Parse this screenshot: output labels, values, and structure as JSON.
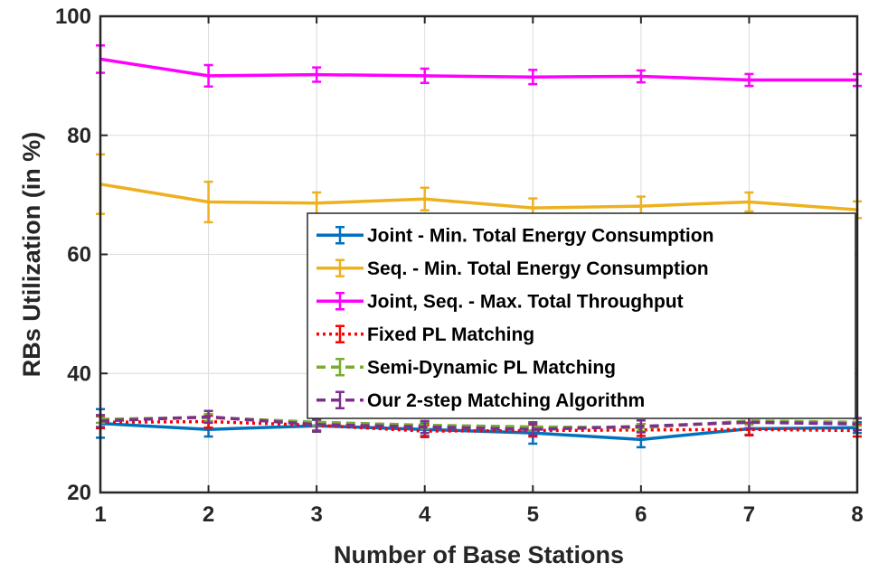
{
  "chart_data": {
    "type": "line",
    "xlabel": "Number of Base Stations",
    "ylabel": "RBs Utilization (in %)",
    "xlim": [
      1,
      8
    ],
    "ylim": [
      20,
      100
    ],
    "xticks": [
      1,
      2,
      3,
      4,
      5,
      6,
      7,
      8
    ],
    "yticks": [
      20,
      40,
      60,
      80,
      100
    ],
    "grid": true,
    "legend_position": "right-center",
    "x": [
      1,
      2,
      3,
      4,
      5,
      6,
      7,
      8
    ],
    "series": [
      {
        "name": "Joint - Min. Total Energy Consumption",
        "color": "#0072BD",
        "dash": "solid",
        "values": [
          31.6,
          30.6,
          31.2,
          30.6,
          30.0,
          28.9,
          30.7,
          30.9
        ],
        "errors": [
          2.4,
          1.2,
          1.0,
          1.1,
          1.8,
          1.3,
          1.0,
          0.9
        ]
      },
      {
        "name": "Seq. - Min. Total Energy Consumption",
        "color": "#EDB120",
        "dash": "solid",
        "values": [
          71.8,
          68.8,
          68.6,
          69.3,
          67.8,
          68.1,
          68.8,
          67.5
        ],
        "errors": [
          5.0,
          3.4,
          1.8,
          1.9,
          1.6,
          1.6,
          1.6,
          1.4
        ]
      },
      {
        "name": "Joint, Seq. - Max. Total Throughput",
        "color": "#FF00FF",
        "dash": "solid",
        "values": [
          92.8,
          90.0,
          90.2,
          90.0,
          89.8,
          89.9,
          89.3,
          89.3
        ],
        "errors": [
          2.3,
          1.8,
          1.2,
          1.2,
          1.2,
          1.0,
          1.0,
          1.0
        ]
      },
      {
        "name": "Fixed PL Matching",
        "color": "#FF0000",
        "dash": "dotted",
        "values": [
          31.8,
          31.9,
          31.3,
          30.3,
          30.4,
          30.5,
          30.6,
          30.4
        ],
        "errors": [
          1.0,
          1.0,
          1.0,
          1.0,
          1.0,
          1.0,
          1.0,
          1.0
        ]
      },
      {
        "name": "Semi-Dynamic PL Matching",
        "color": "#77AC30",
        "dash": "dashed",
        "values": [
          32.3,
          32.6,
          31.8,
          31.3,
          31.0,
          30.9,
          32.0,
          31.8
        ],
        "errors": [
          0.6,
          0.6,
          0.6,
          0.6,
          0.6,
          0.6,
          0.6,
          0.6
        ]
      },
      {
        "name": "Our 2-step Matching Algorithm",
        "color": "#7E2F8E",
        "dash": "dashed",
        "values": [
          32.0,
          32.7,
          31.4,
          31.0,
          30.6,
          31.1,
          31.8,
          31.5
        ],
        "errors": [
          1.0,
          1.0,
          1.0,
          1.0,
          1.0,
          1.0,
          1.0,
          1.0
        ]
      }
    ]
  }
}
